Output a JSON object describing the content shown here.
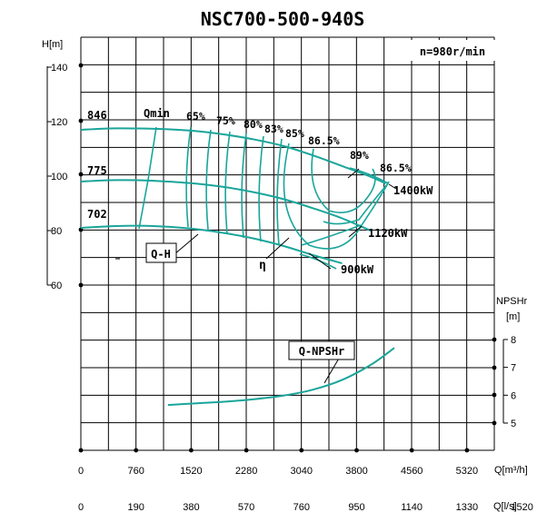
{
  "title": "NSC700-500-940S",
  "speed_label": "n=980r/min",
  "axes": {
    "h_label": "H[m]",
    "npsh_label_1": "NPSHr",
    "npsh_label_2": "[m]",
    "q_m3h_label": "Q[m³/h]",
    "q_ls_label": "Q[l/s]"
  },
  "chart_data": {
    "type": "line",
    "title": "NSC700-500-940S",
    "subtitle": "n=980r/min",
    "x_ticks_m3h": [
      "0",
      "760",
      "1520",
      "2280",
      "3040",
      "3800",
      "4560",
      "5320"
    ],
    "x_ticks_ls": [
      "0",
      "190",
      "380",
      "570",
      "760",
      "950",
      "1140",
      "1330",
      "1520"
    ],
    "h_ticks": [
      "140",
      "120",
      "100",
      "80",
      "60"
    ],
    "npsh_ticks": [
      "8",
      "7",
      "6",
      "5"
    ],
    "h_range": [
      60,
      140
    ],
    "npsh_range": [
      5,
      8
    ],
    "q_range_m3h": [
      0,
      5700
    ],
    "grid": true,
    "impeller_diameters": [
      {
        "name": "846",
        "q": [
          0,
          400,
          800,
          1200,
          1600,
          2000,
          2400,
          2800,
          3200,
          3600,
          4000,
          4200
        ],
        "h": [
          117,
          117.5,
          117.5,
          117.2,
          116.5,
          115.2,
          113.4,
          111.0,
          107.6,
          103.7,
          99.7,
          97.3
        ]
      },
      {
        "name": "775",
        "q": [
          0,
          400,
          800,
          1200,
          1600,
          2000,
          2400,
          2800,
          3200,
          3600,
          4000
        ],
        "h": [
          98,
          98.5,
          98.5,
          98.0,
          97.2,
          95.9,
          94.0,
          91.5,
          88.2,
          84.5,
          79.9
        ]
      },
      {
        "name": "702",
        "q": [
          0,
          400,
          800,
          1200,
          1600,
          2000,
          2400,
          2800,
          3200,
          3600
        ],
        "h": [
          81,
          81.6,
          81.8,
          81.4,
          80.5,
          79.0,
          77.0,
          74.3,
          71.0,
          68.0
        ]
      }
    ],
    "efficiency_labels": [
      "65%",
      "75%",
      "80%",
      "83%",
      "85%",
      "86.5%",
      "89%",
      "86.5%"
    ],
    "power_labels": [
      "1400kW",
      "1120kW",
      "900kW"
    ],
    "npshr_curve": {
      "name": "Q-NPSHr",
      "q": [
        1200,
        1600,
        2000,
        2400,
        2800,
        3200,
        3600,
        4000,
        4320
      ],
      "npsh": [
        5.65,
        5.71,
        5.77,
        5.86,
        5.99,
        6.2,
        6.55,
        7.1,
        7.7
      ]
    },
    "annotations": [
      "Qmin",
      "Q-H",
      "η",
      "Q-NPSHr"
    ]
  }
}
